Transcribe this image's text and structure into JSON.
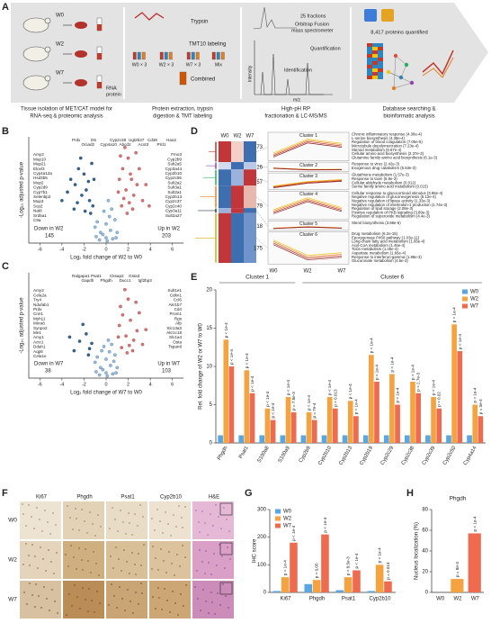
{
  "panel_labels": [
    "A",
    "B",
    "C",
    "D",
    "E",
    "F",
    "G",
    "H"
  ],
  "panel_a": {
    "mice": [
      "W0",
      "W2",
      "W7"
    ],
    "rna": "RNA",
    "protein": "protein",
    "trypsin": "Trypsin",
    "tmt": "TMT10 labeling",
    "groups": [
      "W0 × 3",
      "W2 × 3",
      "W7 × 3",
      "Mix"
    ],
    "combined": "Combined",
    "fractions": "25 fractions",
    "instrument": [
      "Orbitrap Fusion",
      "mass spectrometer"
    ],
    "quantification": "Quantification",
    "identification": "Identification",
    "intensity": "Intensity",
    "mz": "m/z",
    "proteins": "8,417 proteins quantified",
    "captions": [
      [
        "Tissue isolation of MET/CAT model for",
        "RNA-seq & proteomic analysis"
      ],
      [
        "Protein extraction, trypsin",
        "digestion & TMT labeling"
      ],
      [
        "High-pH RP",
        "fractionation & LC-MS/MS"
      ],
      [
        "Database searching &",
        "bioinformatic analysis"
      ]
    ]
  },
  "panel_d": {
    "columns": [
      "W0",
      "W2",
      "W7"
    ],
    "clusters": [
      {
        "name": "Cluster 1",
        "size": 73,
        "terms": [
          "Chronic inflammatory response (4.38e-4)",
          "L-serine biosynthesis (4.38e-4)",
          "Regulation of blood coagulation (7.05e-5)",
          "Microtubule depolymerization (7.23e-4)",
          "Steroid metabolism (9.87e-4)",
          "Cellular amino acid biosynthesis (2.37e-3)",
          "Glutamine family amino acid biosynthesis (6.1e-3)"
        ]
      },
      {
        "name": "Cluster 2",
        "size": 26,
        "terms": [
          "Response to virus (2.42e-3)",
          "Exogenous drug catabolism (5.53e-3)"
        ]
      },
      {
        "name": "Cluster 3",
        "size": 57,
        "terms": [
          "Glutathione metabolism (1.57e-3)",
          "Response to toxin (5.8e-3)",
          "Cellular aldehyde metabolism (0.012)",
          "Serine family amino acid metabolism (0.015)"
        ]
      },
      {
        "name": "Cluster 4",
        "size": 79,
        "terms": [
          "Cellular response to glucocorticoid stimulus (3.96e-4)",
          "Negative regulation of gluconeogenesis (5.12e-4)",
          "Negative regulation of lipase activity (1.33e-3)",
          "Negative regulation of interleukin-1 production (1.74e-3)",
          "Regulation of lipid storage (2.08e-3)",
          "Positive regulation of PKB signaling (3.89e-3)",
          "Regulation of superoxide metabolism (4.4e-3)"
        ]
      },
      {
        "name": "Cluster 5",
        "size": 18,
        "terms": [
          "Sterol biosynthesis (3.98e-6)"
        ]
      },
      {
        "name": "Cluster 6",
        "size": 175,
        "terms": [
          "Drug metabolism (6.2e-15)",
          "Epoxygenase P450 pathway (1.03e-11)",
          "Long-chain fatty acid metabolism (1.66e-4)",
          "Acyl-CoA metabolism (1.46e-4)",
          "Toxin metabolism (1.46e-4)",
          "Aspartate metabolism (1.66e-4)",
          "Response to interferon-gamma (1.98e-3)",
          "Glucuronate metabolism (4.5e-3)"
        ]
      }
    ]
  },
  "panel_f": {
    "columns": [
      "Ki67",
      "Phgdh",
      "Psat1",
      "Cyp2b10",
      "H&E"
    ],
    "rows": [
      "W0",
      "W2",
      "W7"
    ]
  },
  "chart_data": [
    {
      "type": "scatter",
      "xlabel": "Log₂ fold change of W2 to W0",
      "ylabel": "-Log₁₀ adjusted p-value",
      "xlim": [
        -7,
        7
      ],
      "xticks": [
        -6,
        -4,
        -2,
        0,
        2,
        4,
        6
      ],
      "ylim": [
        0,
        10
      ],
      "series": [
        {
          "color": "#8fbde8",
          "x": [
            -0.5,
            0,
            0.4,
            -0.8,
            0.8,
            -0.2,
            0.3,
            -0.6,
            0.6,
            0,
            -1,
            1,
            0.2,
            -0.3,
            0.5,
            -0.9,
            0.9,
            0.1
          ],
          "y": [
            1,
            0.5,
            1.2,
            2,
            2.2,
            3,
            2.5,
            0.3,
            0.4,
            1.8,
            1.5,
            1,
            4,
            0.8,
            3.2,
            0.6,
            0.5,
            0.2
          ]
        },
        {
          "color": "#2f6496",
          "x": [
            -3.2,
            -2.8,
            -2.5,
            -2.2,
            -2,
            -1.8,
            -1.5,
            -1.3,
            -1.2,
            -3.5,
            -2.6,
            -1.9,
            -1.6,
            -4,
            -1.4,
            -2.3,
            -1.1,
            -2.9
          ],
          "y": [
            6,
            5.5,
            7,
            4.5,
            6.5,
            5,
            4,
            7.5,
            3.5,
            4.8,
            3.8,
            3,
            5.8,
            4,
            2.8,
            8,
            6,
            3.2
          ]
        },
        {
          "color": "#e07070",
          "x": [
            1.2,
            1.5,
            1.8,
            2,
            2.2,
            2.5,
            2.8,
            3,
            3.3,
            1.4,
            1.7,
            2.4,
            3.6,
            1.1,
            2.1,
            2.7,
            1.3,
            1.9,
            3.9,
            2.3,
            1.6
          ],
          "y": [
            6,
            7,
            5,
            8,
            6.5,
            4.5,
            5.5,
            7,
            4,
            3.5,
            9,
            3.2,
            5.5,
            4.8,
            3.8,
            8.5,
            8.2,
            2.8,
            3.5,
            6,
            4.2
          ]
        }
      ],
      "labels_left": [
        "Amy2",
        "Mup10",
        "Mup21",
        "Elovl3",
        "Cyp4a12a",
        "Hsd3b5",
        "Mup2",
        "Cyp2d9",
        "Cyp7b1",
        "Selenbp2",
        "Mup3",
        "Scp2",
        "Nat8",
        "Srd5a1",
        "C8a"
      ],
      "labels_top": [
        "Prdx",
        "Ociad2",
        "D6",
        "Cyp4a10",
        "Cyp2c38",
        "Abcd2",
        "Ugt2b37",
        "Acot3",
        "Cd36",
        "Plcl1",
        "Hao2"
      ],
      "labels_right": [
        "Fmo3",
        "Cyp2b9",
        "Sult2a5",
        "Cyp3a44",
        "Cyp2b10",
        "Cyp2c55",
        "Sult2a2",
        "Sult3a1",
        "Sult2a1",
        "Cyp2b13",
        "Cyp2c37",
        "Cyp2c40",
        "Cyp3a11",
        "Sult2a27"
      ],
      "down_label": "Down in W2",
      "down_count": "145",
      "up_label": "Up in W2",
      "up_count": "203"
    },
    {
      "type": "scatter",
      "xlabel": "Log₂ fold change of W7 to W0",
      "ylabel": "-Log₁₀ adjusted p-value",
      "xlim": [
        -7,
        7
      ],
      "xticks": [
        -6,
        -4,
        -2,
        0,
        2,
        4,
        6
      ],
      "ylim": [
        0,
        10
      ],
      "series": [
        {
          "color": "#8fbde8",
          "x": [
            -0.5,
            0,
            0.4,
            -0.8,
            0.8,
            -0.2,
            0.3,
            -0.6,
            0.6,
            0,
            -1,
            1,
            0.2,
            -0.3,
            0.5,
            -0.9,
            0.9,
            0.1,
            -0.4,
            0.7
          ],
          "y": [
            1,
            0.5,
            1.2,
            2,
            2.2,
            3,
            2.5,
            0.3,
            0.4,
            1.8,
            1.5,
            1,
            3.6,
            0.8,
            3.2,
            0.6,
            0.5,
            0.2,
            2.6,
            1.6
          ]
        },
        {
          "color": "#2f6496",
          "x": [
            -2.4,
            -1.8,
            -1.5,
            -2.9,
            -1.3,
            -2.1,
            -1.6,
            -3.3
          ],
          "y": [
            3.5,
            4.2,
            2.8,
            2.6,
            3.3,
            5.1,
            2.2,
            3.9
          ]
        },
        {
          "color": "#e07070",
          "x": [
            1.2,
            1.5,
            1.8,
            2,
            2.2,
            2.5,
            2.8,
            3,
            3.3,
            1.4,
            1.7,
            2.4,
            3.6,
            1.1,
            2.1,
            2.7,
            1.3,
            1.9
          ],
          "y": [
            5,
            6,
            4,
            7.5,
            5.5,
            3.6,
            4.5,
            6.2,
            3.2,
            2.9,
            8.4,
            2.6,
            4.6,
            3.9,
            3.1,
            7.2,
            6.8,
            2.4
          ]
        }
      ],
      "labels_left": [
        "Amy2",
        "Cela2a",
        "Try4",
        "Ndufab1",
        "Prdx",
        "Cnn1",
        "Myh11",
        "Mxra8",
        "Synpo2",
        "Me1",
        "Amy1",
        "Actc1",
        "Ddah1",
        "Aqp8",
        "Cela1e"
      ],
      "labels_top": [
        "Ralgapa1",
        "Gapdh",
        "Psat1",
        "Phgdh",
        "Cksap2",
        "Ducc1",
        "Gsta3",
        "Igf2bp3"
      ],
      "labels_right": [
        "Sult1e1",
        "Cdkn1",
        "Ccl6",
        "Akr1b7",
        "Cd4",
        "Prom1",
        "Rgs",
        "Afp",
        "Slc13a3",
        "Akr1c18",
        "Slc1a4",
        "Osta",
        "Tspan8"
      ],
      "down_label": "Down in W7",
      "down_count": "38",
      "up_label": "Up in W7",
      "up_count": "103"
    },
    {
      "type": "bar",
      "ylabel": "Rel. fold change of W2 or W7 to W0",
      "groups": [
        "Cluster 1",
        "Cluster 6"
      ],
      "categories": [
        "Phgdh",
        "Psat1",
        "S100a8",
        "S100a9",
        "Cyp2b9",
        "Cyp2b10",
        "Cyp2b13",
        "Cyp2b19",
        "Cyp2c29",
        "Cyp2c38",
        "Cyp2c39",
        "Cyp2c50",
        "Cyp4a14"
      ],
      "ylim": [
        0,
        20
      ],
      "yticks": [
        0,
        5,
        10,
        15,
        20
      ],
      "legend": "top-right",
      "series": [
        {
          "name": "W0",
          "color": "#5aa6e0",
          "values": [
            1,
            1,
            1,
            1,
            1,
            1,
            1,
            1,
            1,
            1,
            1,
            1,
            1
          ]
        },
        {
          "name": "W2",
          "color": "#f5a340",
          "values": [
            13.5,
            9.5,
            4.5,
            6,
            4,
            6,
            5.5,
            11.5,
            9,
            8,
            6,
            15.5,
            5
          ],
          "p_labels": [
            "p < 1e-4",
            "p < 1e-4",
            "p < 1e-4",
            "p < 1e-4",
            "p < 1e-4",
            "p < 1e-4",
            "p < 1e-4",
            "p < 1e-4",
            "p < 1e-4",
            "p < 1e-4",
            "p < 1e-4",
            "p < 1e-4",
            "p < 1e-4"
          ]
        },
        {
          "name": "W7",
          "color": "#ef6b4f",
          "values": [
            10,
            6.5,
            3,
            4,
            3,
            4.5,
            3.5,
            8,
            5,
            6.5,
            4.5,
            12,
            3.5
          ],
          "p_labels": [
            "p < 1e-4",
            "p < 1e-4",
            "p < 1e-4",
            "p = 7.8e-3",
            "p = 7e-4",
            "p = 0.013",
            "p < 1e-4",
            "p < 1e-4",
            "p < 1e-4",
            "p = 2.7e-3",
            "p = 0.02",
            "p < 1e-4",
            "p = 3e-4"
          ]
        }
      ]
    },
    {
      "type": "bar",
      "ylabel": "IHC score",
      "categories": [
        "Ki67",
        "Phgdh",
        "Psat1",
        "Cyp2b10"
      ],
      "ylim": [
        0,
        300
      ],
      "yticks": [
        0,
        100,
        200,
        300
      ],
      "legend": "top-left",
      "series": [
        {
          "name": "W0",
          "color": "#5aa6e0",
          "values": [
            5,
            30,
            8,
            5
          ]
        },
        {
          "name": "W2",
          "color": "#f5a340",
          "values": [
            55,
            45,
            55,
            100
          ],
          "p_labels": [
            "p < 1e-4",
            "p = 0.05",
            "p = 8.5e-3",
            "p < 1e-4"
          ]
        },
        {
          "name": "W7",
          "color": "#ef6b4f",
          "values": [
            180,
            210,
            80,
            40
          ],
          "p_labels": [
            "p < 1e-4",
            "p < 1e-4",
            "p < 1e-4",
            "p = 0.014"
          ]
        }
      ]
    },
    {
      "type": "bar",
      "title": "Phgdh",
      "ylabel": "Nucleus localization (%)",
      "categories": [
        "W0",
        "W2",
        "W7"
      ],
      "ylim": [
        0,
        80
      ],
      "yticks": [
        0,
        20,
        40,
        60,
        80
      ],
      "series": [
        {
          "colors": [
            "#5aa6e0",
            "#f5a340",
            "#ef6b4f"
          ],
          "values": [
            0,
            13,
            57
          ],
          "p_labels": [
            null,
            "p = 8e-3",
            "p < 1e-4"
          ]
        }
      ]
    }
  ]
}
